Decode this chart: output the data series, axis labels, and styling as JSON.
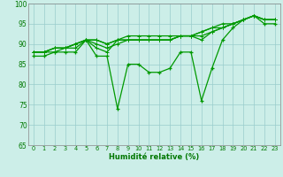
{
  "xlabel": "Humidité relative (%)",
  "bg_color": "#cceee8",
  "grid_color": "#99cccc",
  "line_color": "#009900",
  "xlim": [
    -0.5,
    23.5
  ],
  "ylim": [
    65,
    100
  ],
  "yticks": [
    65,
    70,
    75,
    80,
    85,
    90,
    95,
    100
  ],
  "xticks": [
    0,
    1,
    2,
    3,
    4,
    5,
    6,
    7,
    8,
    9,
    10,
    11,
    12,
    13,
    14,
    15,
    16,
    17,
    18,
    19,
    20,
    21,
    22,
    23
  ],
  "series_upper": [
    [
      88,
      88,
      89,
      89,
      90,
      91,
      90,
      89,
      90,
      91,
      91,
      91,
      91,
      91,
      92,
      92,
      92,
      93,
      94,
      95,
      96,
      97,
      96,
      96
    ],
    [
      88,
      88,
      89,
      89,
      90,
      91,
      91,
      90,
      91,
      91,
      91,
      91,
      91,
      91,
      92,
      92,
      93,
      94,
      94,
      95,
      96,
      97,
      96,
      96
    ],
    [
      88,
      88,
      89,
      89,
      90,
      91,
      91,
      90,
      91,
      92,
      92,
      92,
      92,
      92,
      92,
      92,
      93,
      94,
      95,
      95,
      96,
      97,
      96,
      96
    ],
    [
      88,
      88,
      88,
      89,
      89,
      91,
      89,
      88,
      91,
      91,
      91,
      91,
      91,
      91,
      92,
      92,
      91,
      93,
      94,
      95,
      96,
      97,
      96,
      96
    ]
  ],
  "series_lower": [
    87,
    87,
    88,
    88,
    88,
    91,
    87,
    87,
    74,
    85,
    85,
    83,
    83,
    84,
    88,
    88,
    76,
    84,
    91,
    94,
    96,
    97,
    95,
    95
  ]
}
